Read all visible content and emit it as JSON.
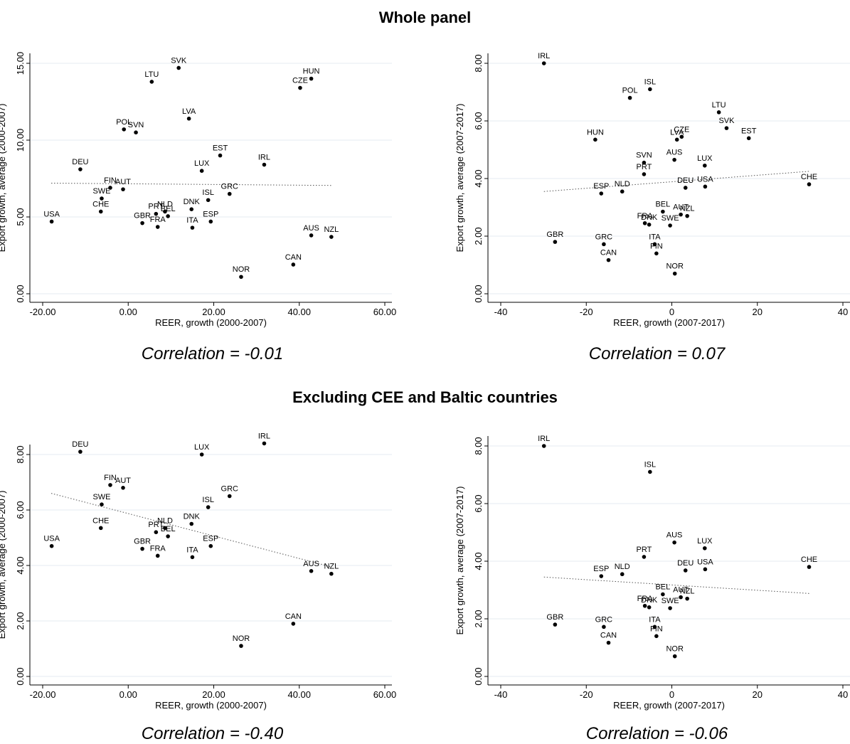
{
  "sections": [
    {
      "title": "Whole panel"
    },
    {
      "title": "Excluding CEE and Baltic countries"
    }
  ],
  "correlations": [
    "Correlation = -0.01",
    "Correlation = 0.07",
    "Correlation = -0.40",
    "Correlation = -0.06"
  ],
  "chart_data": [
    {
      "type": "scatter",
      "xlabel": "REER, growth (2000-2007)",
      "ylabel": "Export growth, average (2000-2007)",
      "xlim": [
        -20,
        60
      ],
      "ylim": [
        0,
        15
      ],
      "xticks": [
        -20,
        0,
        20,
        40,
        60
      ],
      "xtick_labels": [
        "-20.00",
        "0.00",
        "20.00",
        "40.00",
        "60.00"
      ],
      "yticks": [
        0,
        5,
        10,
        15
      ],
      "ytick_labels": [
        "0.00",
        "5.00",
        "10.00",
        "15.00"
      ],
      "grid": true,
      "fit_line": [
        [
          -18,
          7.2
        ],
        [
          47.5,
          7.05
        ]
      ],
      "points": [
        {
          "label": "SVK",
          "x": 11.8,
          "y": 14.7
        },
        {
          "label": "HUN",
          "x": 42.8,
          "y": 14.0
        },
        {
          "label": "LTU",
          "x": 5.5,
          "y": 13.8
        },
        {
          "label": "CZE",
          "x": 40.2,
          "y": 13.4
        },
        {
          "label": "LVA",
          "x": 14.2,
          "y": 11.4
        },
        {
          "label": "POL",
          "x": -1.0,
          "y": 10.7
        },
        {
          "label": "SVN",
          "x": 1.8,
          "y": 10.5
        },
        {
          "label": "EST",
          "x": 21.5,
          "y": 9.0
        },
        {
          "label": "IRL",
          "x": 31.8,
          "y": 8.4
        },
        {
          "label": "DEU",
          "x": -11.2,
          "y": 8.1
        },
        {
          "label": "LUX",
          "x": 17.2,
          "y": 8.0
        },
        {
          "label": "FIN",
          "x": -4.2,
          "y": 6.9
        },
        {
          "label": "AUT",
          "x": -1.2,
          "y": 6.8
        },
        {
          "label": "GRC",
          "x": 23.7,
          "y": 6.5
        },
        {
          "label": "SWE",
          "x": -6.2,
          "y": 6.2
        },
        {
          "label": "ISL",
          "x": 18.7,
          "y": 6.1
        },
        {
          "label": "DNK",
          "x": 14.8,
          "y": 5.5
        },
        {
          "label": "CHE",
          "x": -6.4,
          "y": 5.35
        },
        {
          "label": "NLD",
          "x": 8.6,
          "y": 5.35
        },
        {
          "label": "PRT",
          "x": 6.5,
          "y": 5.2
        },
        {
          "label": "BEL",
          "x": 9.3,
          "y": 5.05
        },
        {
          "label": "USA",
          "x": -17.9,
          "y": 4.7
        },
        {
          "label": "ESP",
          "x": 19.3,
          "y": 4.7
        },
        {
          "label": "GBR",
          "x": 3.3,
          "y": 4.6
        },
        {
          "label": "FRA",
          "x": 6.9,
          "y": 4.35
        },
        {
          "label": "ITA",
          "x": 15.0,
          "y": 4.3
        },
        {
          "label": "AUS",
          "x": 42.8,
          "y": 3.8
        },
        {
          "label": "NZL",
          "x": 47.5,
          "y": 3.7
        },
        {
          "label": "CAN",
          "x": 38.6,
          "y": 1.9
        },
        {
          "label": "NOR",
          "x": 26.4,
          "y": 1.1
        }
      ]
    },
    {
      "type": "scatter",
      "xlabel": "REER, growth (2007-2017)",
      "ylabel": "Export growth, average (2007-2017)",
      "xlim": [
        -40,
        40
      ],
      "ylim": [
        0,
        8
      ],
      "xticks": [
        -40,
        -20,
        0,
        20,
        40
      ],
      "xtick_labels": [
        "-40",
        "-20",
        "0",
        "20",
        "40"
      ],
      "yticks": [
        0,
        2,
        4,
        6,
        8
      ],
      "ytick_labels": [
        "0.00",
        "2.00",
        "4.00",
        "6.00",
        "8.00"
      ],
      "grid": true,
      "fit_line": [
        [
          -29.9,
          3.55
        ],
        [
          32.1,
          4.25
        ]
      ],
      "points": [
        {
          "label": "IRL",
          "x": -29.9,
          "y": 8.0
        },
        {
          "label": "ISL",
          "x": -5.1,
          "y": 7.1
        },
        {
          "label": "POL",
          "x": -9.8,
          "y": 6.8
        },
        {
          "label": "LTU",
          "x": 11.0,
          "y": 6.3
        },
        {
          "label": "SVK",
          "x": 12.8,
          "y": 5.75
        },
        {
          "label": "CZE",
          "x": 2.3,
          "y": 5.45
        },
        {
          "label": "EST",
          "x": 18.0,
          "y": 5.4
        },
        {
          "label": "HUN",
          "x": -17.9,
          "y": 5.35
        },
        {
          "label": "LVA",
          "x": 1.2,
          "y": 5.35
        },
        {
          "label": "AUS",
          "x": 0.6,
          "y": 4.65
        },
        {
          "label": "SVN",
          "x": -6.5,
          "y": 4.55
        },
        {
          "label": "LUX",
          "x": 7.7,
          "y": 4.45
        },
        {
          "label": "PRT",
          "x": -6.5,
          "y": 4.15
        },
        {
          "label": "CHE",
          "x": 32.1,
          "y": 3.8
        },
        {
          "label": "USA",
          "x": 7.8,
          "y": 3.72
        },
        {
          "label": "DEU",
          "x": 3.2,
          "y": 3.68
        },
        {
          "label": "NLD",
          "x": -11.6,
          "y": 3.55
        },
        {
          "label": "ESP",
          "x": -16.5,
          "y": 3.48
        },
        {
          "label": "BEL",
          "x": -2.1,
          "y": 2.85
        },
        {
          "label": "AUT",
          "x": 2.1,
          "y": 2.75
        },
        {
          "label": "NZL",
          "x": 3.6,
          "y": 2.7
        },
        {
          "label": "FRA",
          "x": -6.3,
          "y": 2.45
        },
        {
          "label": "DNK",
          "x": -5.3,
          "y": 2.4
        },
        {
          "label": "SWE",
          "x": -0.4,
          "y": 2.37
        },
        {
          "label": "GBR",
          "x": -27.3,
          "y": 1.8
        },
        {
          "label": "GRC",
          "x": -15.9,
          "y": 1.72
        },
        {
          "label": "ITA",
          "x": -4.0,
          "y": 1.72
        },
        {
          "label": "FIN",
          "x": -3.6,
          "y": 1.4
        },
        {
          "label": "CAN",
          "x": -14.8,
          "y": 1.17
        },
        {
          "label": "NOR",
          "x": 0.7,
          "y": 0.7
        }
      ]
    },
    {
      "type": "scatter",
      "xlabel": "REER, growth (2000-2007)",
      "ylabel": "Export growth, average (2000-2007)",
      "xlim": [
        -20,
        60
      ],
      "ylim": [
        0,
        8
      ],
      "xticks": [
        -20,
        0,
        20,
        40,
        60
      ],
      "xtick_labels": [
        "-20.00",
        "0.00",
        "20.00",
        "40.00",
        "60.00"
      ],
      "yticks": [
        0,
        2,
        4,
        6,
        8
      ],
      "ytick_labels": [
        "0.00",
        "2.00",
        "4.00",
        "6.00",
        "8.00"
      ],
      "grid": true,
      "fit_line": [
        [
          -18,
          6.6
        ],
        [
          47.5,
          3.95
        ]
      ],
      "points": [
        {
          "label": "IRL",
          "x": 31.8,
          "y": 8.4
        },
        {
          "label": "DEU",
          "x": -11.2,
          "y": 8.1
        },
        {
          "label": "LUX",
          "x": 17.2,
          "y": 8.0
        },
        {
          "label": "FIN",
          "x": -4.2,
          "y": 6.9
        },
        {
          "label": "AUT",
          "x": -1.2,
          "y": 6.8
        },
        {
          "label": "GRC",
          "x": 23.7,
          "y": 6.5
        },
        {
          "label": "SWE",
          "x": -6.2,
          "y": 6.2
        },
        {
          "label": "ISL",
          "x": 18.7,
          "y": 6.1
        },
        {
          "label": "DNK",
          "x": 14.8,
          "y": 5.5
        },
        {
          "label": "CHE",
          "x": -6.4,
          "y": 5.35
        },
        {
          "label": "NLD",
          "x": 8.6,
          "y": 5.35
        },
        {
          "label": "PRT",
          "x": 6.5,
          "y": 5.2
        },
        {
          "label": "BEL",
          "x": 9.3,
          "y": 5.05
        },
        {
          "label": "USA",
          "x": -17.9,
          "y": 4.7
        },
        {
          "label": "ESP",
          "x": 19.3,
          "y": 4.7
        },
        {
          "label": "GBR",
          "x": 3.3,
          "y": 4.6
        },
        {
          "label": "FRA",
          "x": 6.9,
          "y": 4.35
        },
        {
          "label": "ITA",
          "x": 15.0,
          "y": 4.3
        },
        {
          "label": "AUS",
          "x": 42.8,
          "y": 3.8
        },
        {
          "label": "NZL",
          "x": 47.5,
          "y": 3.7
        },
        {
          "label": "CAN",
          "x": 38.6,
          "y": 1.9
        },
        {
          "label": "NOR",
          "x": 26.4,
          "y": 1.1
        }
      ]
    },
    {
      "type": "scatter",
      "xlabel": "REER, growth (2007-2017)",
      "ylabel": "Export growth, average (2007-2017)",
      "xlim": [
        -40,
        40
      ],
      "ylim": [
        0,
        8
      ],
      "xticks": [
        -40,
        -20,
        0,
        20,
        40
      ],
      "xtick_labels": [
        "-40",
        "-20",
        "0",
        "20",
        "40"
      ],
      "yticks": [
        0,
        2,
        4,
        6,
        8
      ],
      "ytick_labels": [
        "0.00",
        "2.00",
        "4.00",
        "6.00",
        "8.00"
      ],
      "grid": true,
      "fit_line": [
        [
          -29.9,
          3.45
        ],
        [
          32.1,
          2.88
        ]
      ],
      "points": [
        {
          "label": "IRL",
          "x": -29.9,
          "y": 8.0
        },
        {
          "label": "ISL",
          "x": -5.1,
          "y": 7.1
        },
        {
          "label": "AUS",
          "x": 0.6,
          "y": 4.65
        },
        {
          "label": "LUX",
          "x": 7.7,
          "y": 4.45
        },
        {
          "label": "PRT",
          "x": -6.5,
          "y": 4.15
        },
        {
          "label": "CHE",
          "x": 32.1,
          "y": 3.8
        },
        {
          "label": "USA",
          "x": 7.8,
          "y": 3.72
        },
        {
          "label": "DEU",
          "x": 3.2,
          "y": 3.68
        },
        {
          "label": "NLD",
          "x": -11.6,
          "y": 3.55
        },
        {
          "label": "ESP",
          "x": -16.5,
          "y": 3.48
        },
        {
          "label": "BEL",
          "x": -2.1,
          "y": 2.85
        },
        {
          "label": "AUT",
          "x": 2.1,
          "y": 2.75
        },
        {
          "label": "NZL",
          "x": 3.6,
          "y": 2.7
        },
        {
          "label": "FRA",
          "x": -6.3,
          "y": 2.45
        },
        {
          "label": "DNK",
          "x": -5.3,
          "y": 2.4
        },
        {
          "label": "SWE",
          "x": -0.4,
          "y": 2.37
        },
        {
          "label": "GBR",
          "x": -27.3,
          "y": 1.8
        },
        {
          "label": "GRC",
          "x": -15.9,
          "y": 1.72
        },
        {
          "label": "ITA",
          "x": -4.0,
          "y": 1.72
        },
        {
          "label": "FIN",
          "x": -3.6,
          "y": 1.4
        },
        {
          "label": "CAN",
          "x": -14.8,
          "y": 1.17
        },
        {
          "label": "NOR",
          "x": 0.7,
          "y": 0.7
        }
      ]
    }
  ]
}
